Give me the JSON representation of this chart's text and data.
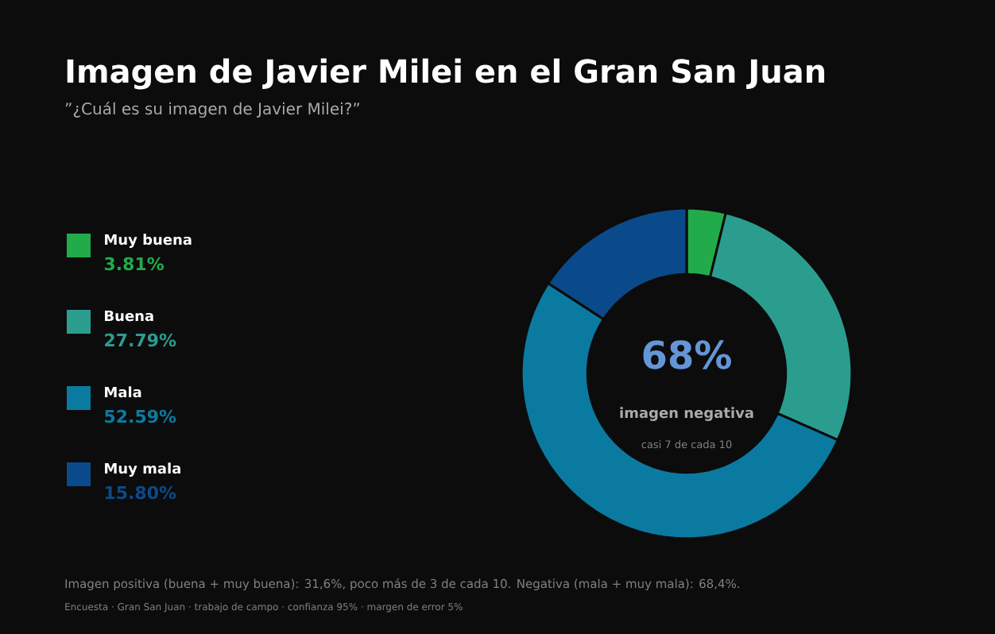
{
  "chart_data": {
    "type": "donut",
    "title": "Imagen de Javier Milei en el Gran San Juan",
    "subtitle": "”¿Cuál es su imagen de Javier Milei?”",
    "categories": [
      "Muy buena",
      "Buena",
      "Mala",
      "Muy mala"
    ],
    "values": [
      3.81,
      27.79,
      52.59,
      15.8
    ],
    "colors": [
      "#22ab4a",
      "#2a9d8f",
      "#0b7aa0",
      "#0b4a8a"
    ],
    "value_labels": [
      "3.81%",
      "27.79%",
      "52.59%",
      "15.80%"
    ],
    "legend": "left",
    "annotations": [
      "68%",
      "imagen negativa",
      "casi 7 de cada 10",
      "Imagen positiva (buena + muy buena): 31,6%, poco más de 3 de cada 10.  Negativa (mala + muy mala): 68,4%.",
      "Encuesta · Gran San Juan · trabajo de campo · confianza 95% · margen de error 5%"
    ]
  }
}
